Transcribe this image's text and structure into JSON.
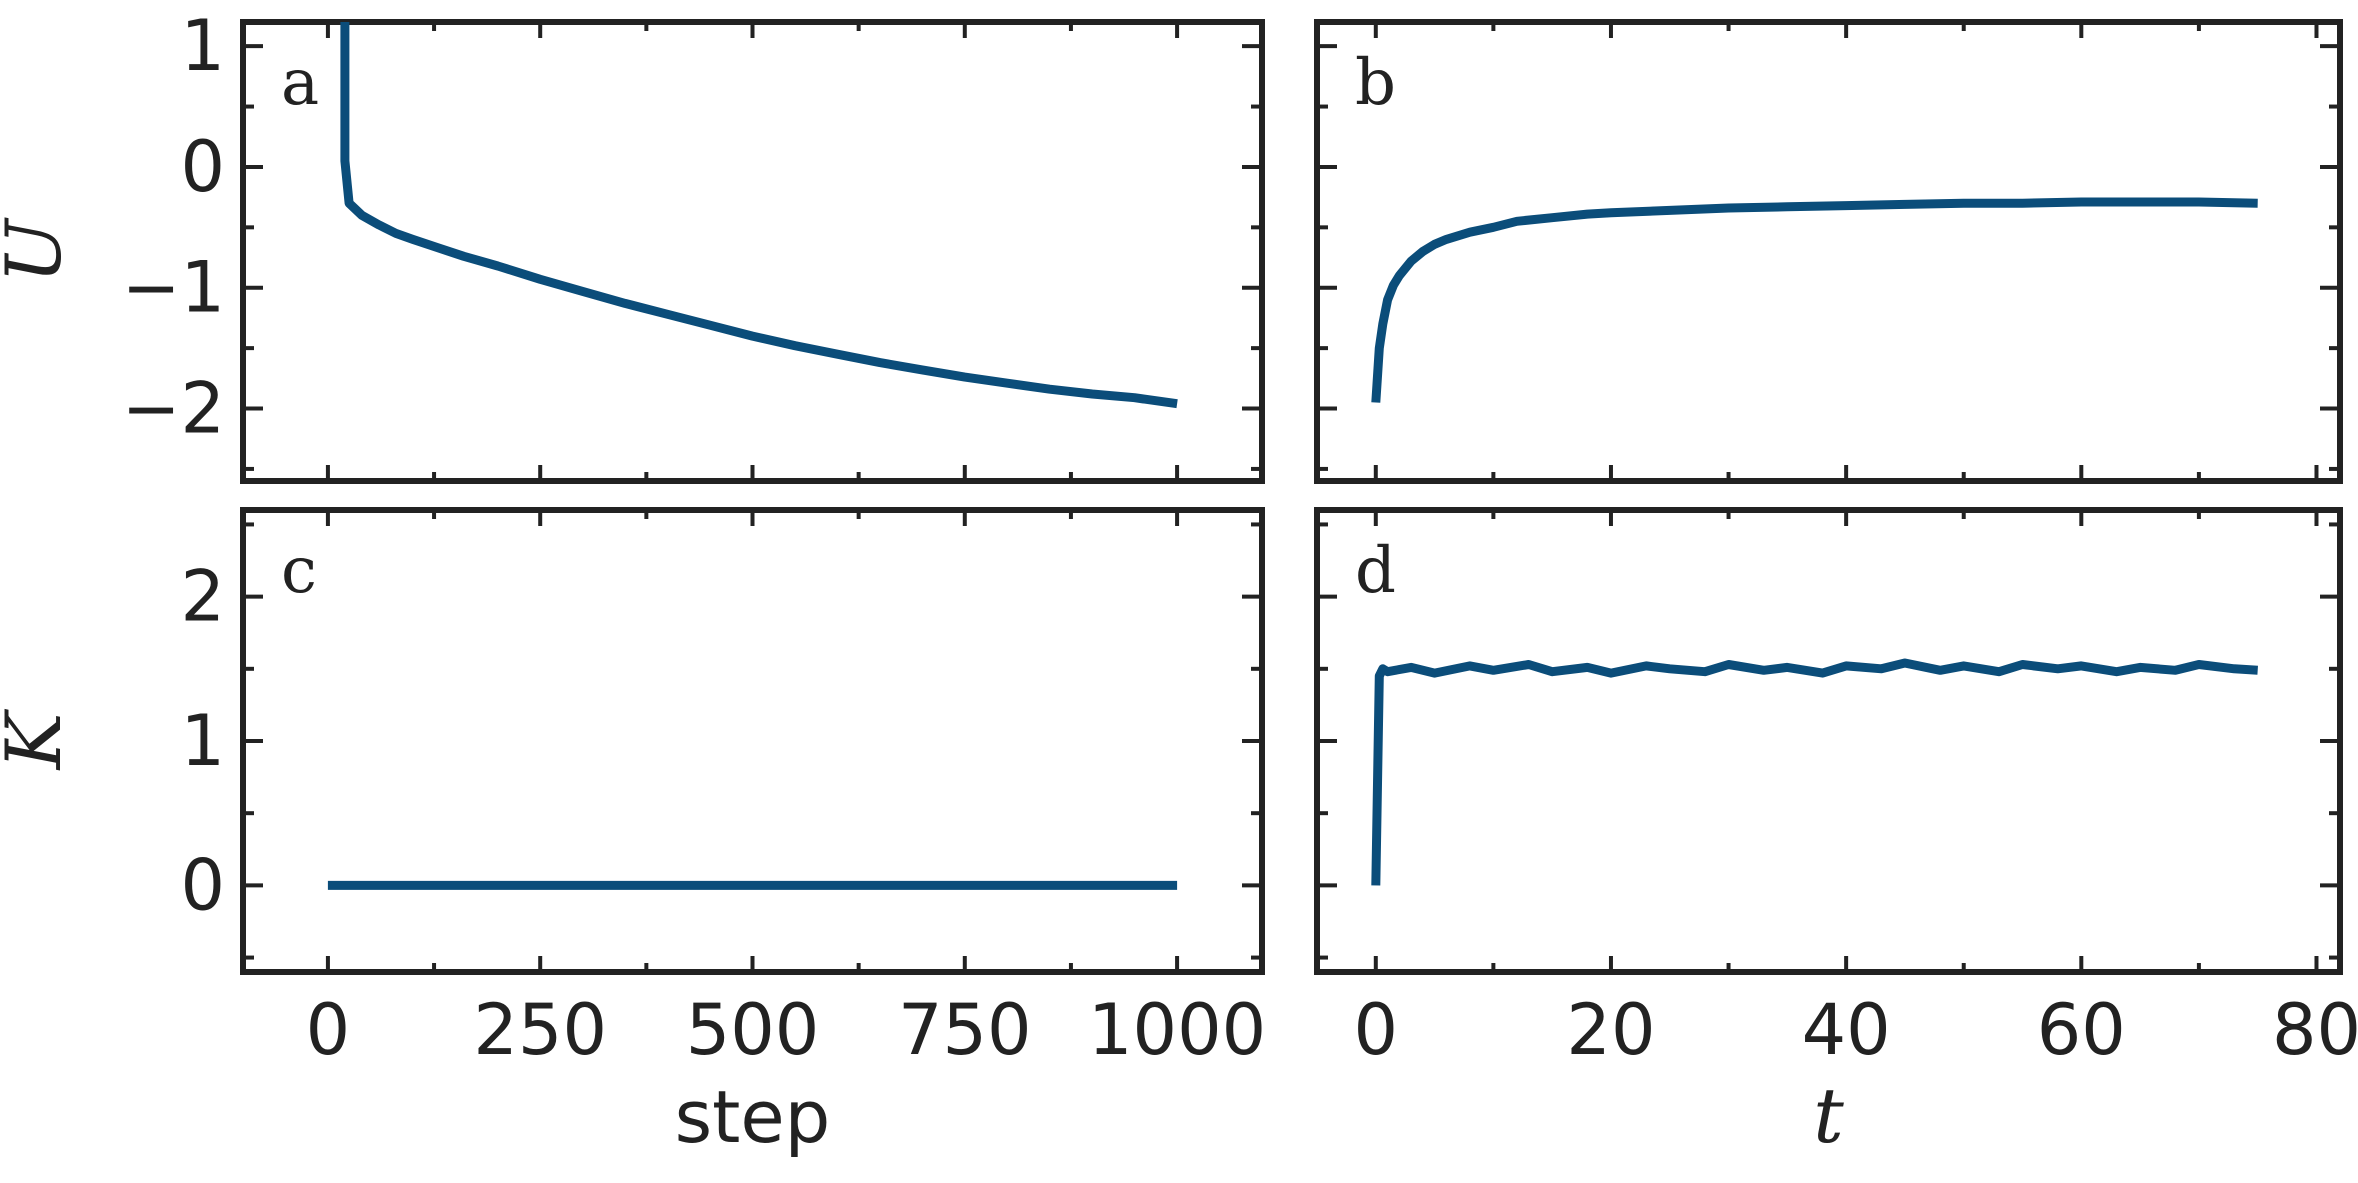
{
  "style": {
    "line_color": "#0b4d7a",
    "frame_color": "#222222"
  },
  "chart_data": [
    {
      "type": "line",
      "panel": "a",
      "xlim": [
        -100,
        1100
      ],
      "ylim": [
        -2.6,
        1.2
      ],
      "xticks": [
        0,
        250,
        500,
        750,
        1000
      ],
      "yticks": [
        -2,
        -1,
        0,
        1
      ],
      "ytick_labels": [
        "−2",
        "−1",
        "0",
        "1"
      ],
      "ylabel": "U",
      "xlabel": "",
      "series": [
        {
          "x": [
            20,
            20,
            25,
            40,
            60,
            80,
            100,
            130,
            160,
            200,
            250,
            300,
            350,
            400,
            450,
            500,
            550,
            600,
            650,
            700,
            750,
            800,
            850,
            900,
            950,
            1000
          ],
          "y": [
            1.25,
            0.05,
            -0.3,
            -0.4,
            -0.48,
            -0.55,
            -0.6,
            -0.67,
            -0.74,
            -0.82,
            -0.93,
            -1.03,
            -1.13,
            -1.22,
            -1.31,
            -1.4,
            -1.48,
            -1.55,
            -1.62,
            -1.68,
            -1.74,
            -1.79,
            -1.84,
            -1.88,
            -1.91,
            -1.96
          ]
        }
      ]
    },
    {
      "type": "line",
      "panel": "b",
      "xlim": [
        -5,
        82
      ],
      "ylim": [
        -2.6,
        1.2
      ],
      "xticks": [
        0,
        20,
        40,
        60,
        80
      ],
      "yticks": [
        -2,
        -1,
        0,
        1
      ],
      "xlabel": "",
      "series": [
        {
          "x": [
            0,
            0.3,
            0.6,
            1,
            1.5,
            2,
            3,
            4,
            5,
            6,
            8,
            10,
            12,
            15,
            18,
            20,
            25,
            30,
            35,
            40,
            45,
            50,
            55,
            60,
            65,
            70,
            75
          ],
          "y": [
            -1.95,
            -1.5,
            -1.3,
            -1.1,
            -0.98,
            -0.9,
            -0.78,
            -0.7,
            -0.64,
            -0.6,
            -0.54,
            -0.5,
            -0.45,
            -0.42,
            -0.39,
            -0.38,
            -0.36,
            -0.34,
            -0.33,
            -0.32,
            -0.31,
            -0.3,
            -0.3,
            -0.29,
            -0.29,
            -0.29,
            -0.3
          ]
        }
      ]
    },
    {
      "type": "line",
      "panel": "c",
      "xlim": [
        -100,
        1100
      ],
      "ylim": [
        -0.6,
        2.6
      ],
      "xticks": [
        0,
        250,
        500,
        750,
        1000
      ],
      "xtick_labels": [
        "0",
        "250",
        "500",
        "750",
        "1000"
      ],
      "yticks": [
        0,
        1,
        2
      ],
      "ylabel": "K",
      "xlabel": "step",
      "series": [
        {
          "x": [
            0,
            1000
          ],
          "y": [
            0,
            0
          ]
        }
      ]
    },
    {
      "type": "line",
      "panel": "d",
      "xlim": [
        -5,
        82
      ],
      "ylim": [
        -0.6,
        2.6
      ],
      "xticks": [
        0,
        20,
        40,
        60,
        80
      ],
      "xtick_labels": [
        "0",
        "20",
        "40",
        "60",
        "80"
      ],
      "yticks": [
        0,
        1,
        2
      ],
      "xlabel": "t",
      "series": [
        {
          "x": [
            0,
            0.3,
            0.6,
            1,
            3,
            5,
            8,
            10,
            13,
            15,
            18,
            20,
            23,
            25,
            28,
            30,
            33,
            35,
            38,
            40,
            43,
            45,
            48,
            50,
            53,
            55,
            58,
            60,
            63,
            65,
            68,
            70,
            73,
            75
          ],
          "y": [
            0,
            1.45,
            1.5,
            1.48,
            1.51,
            1.47,
            1.52,
            1.49,
            1.53,
            1.48,
            1.51,
            1.47,
            1.52,
            1.5,
            1.48,
            1.53,
            1.49,
            1.51,
            1.47,
            1.52,
            1.5,
            1.54,
            1.49,
            1.52,
            1.48,
            1.53,
            1.5,
            1.52,
            1.48,
            1.51,
            1.49,
            1.53,
            1.5,
            1.49
          ]
        }
      ]
    }
  ]
}
